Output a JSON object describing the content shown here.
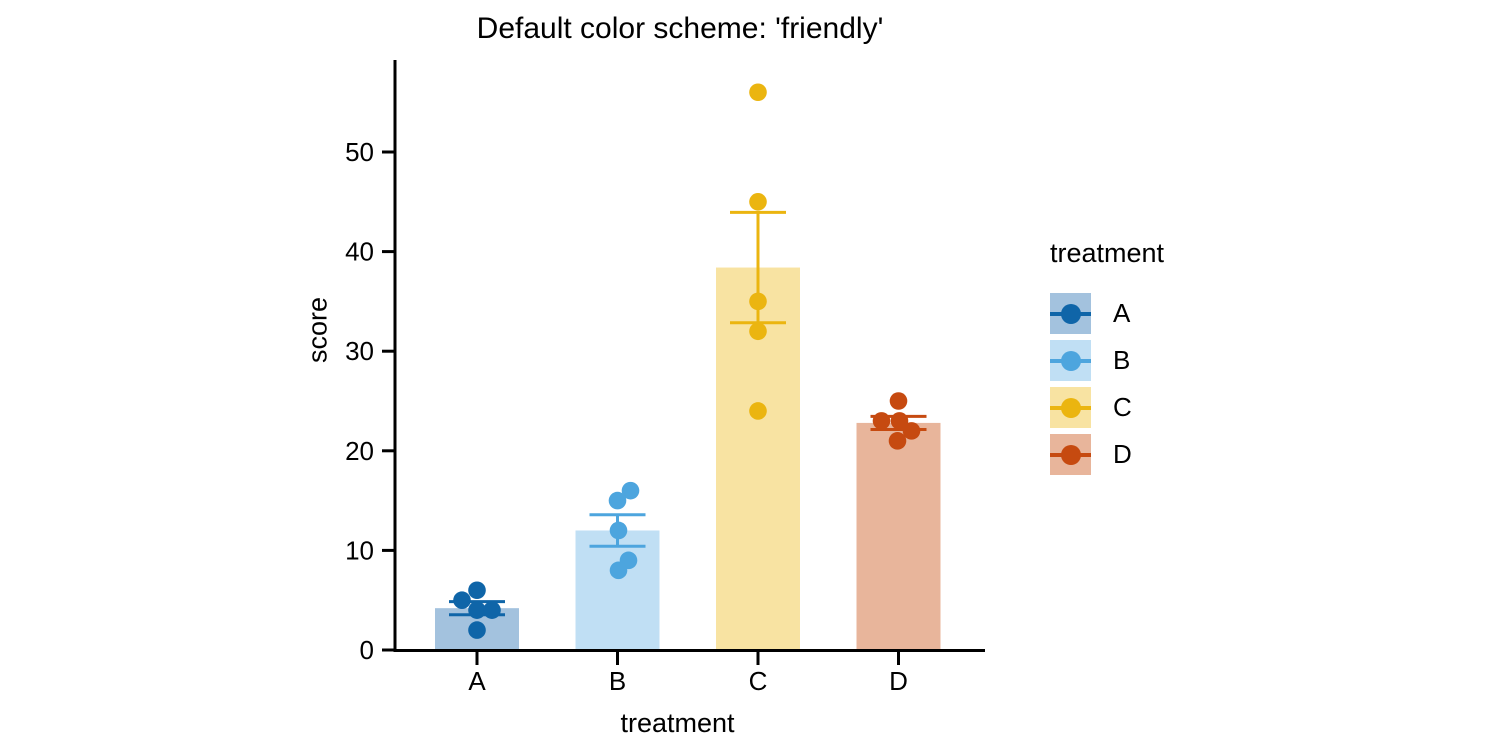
{
  "chart_data": {
    "type": "bar",
    "title": "Default color scheme: 'friendly'",
    "xlabel": "treatment",
    "ylabel": "score",
    "ylim": [
      0,
      58
    ],
    "yticks": [
      0,
      10,
      20,
      30,
      40,
      50
    ],
    "grid": false,
    "axis_color": "#000000",
    "legend": {
      "title": "treatment",
      "position": "right"
    },
    "categories": [
      "A",
      "B",
      "C",
      "D"
    ],
    "groups": [
      {
        "label": "A",
        "mean": 4.2,
        "sem": 0.66,
        "color": "#0F65A8",
        "fill": "#A3C2DE",
        "points": [
          6,
          5,
          4,
          4,
          2
        ],
        "jitter_dx": [
          0,
          -15,
          0,
          15,
          0
        ]
      },
      {
        "label": "B",
        "mean": 12.0,
        "sem": 1.58,
        "color": "#4DA5DE",
        "fill": "#C0DFF4",
        "points": [
          16,
          15,
          12,
          9,
          8
        ],
        "jitter_dx": [
          13,
          0,
          1,
          11,
          1
        ]
      },
      {
        "label": "C",
        "mean": 38.4,
        "sem": 5.54,
        "color": "#EBB510",
        "fill": "#F8E3A2",
        "points": [
          56,
          45,
          35,
          32,
          24
        ],
        "jitter_dx": [
          0,
          0,
          0,
          0,
          0
        ]
      },
      {
        "label": "D",
        "mean": 22.8,
        "sem": 0.66,
        "color": "#C64A10",
        "fill": "#E8B59B",
        "points": [
          25,
          23,
          23,
          22,
          21
        ],
        "jitter_dx": [
          0,
          -17,
          1,
          13,
          -1
        ]
      }
    ]
  }
}
